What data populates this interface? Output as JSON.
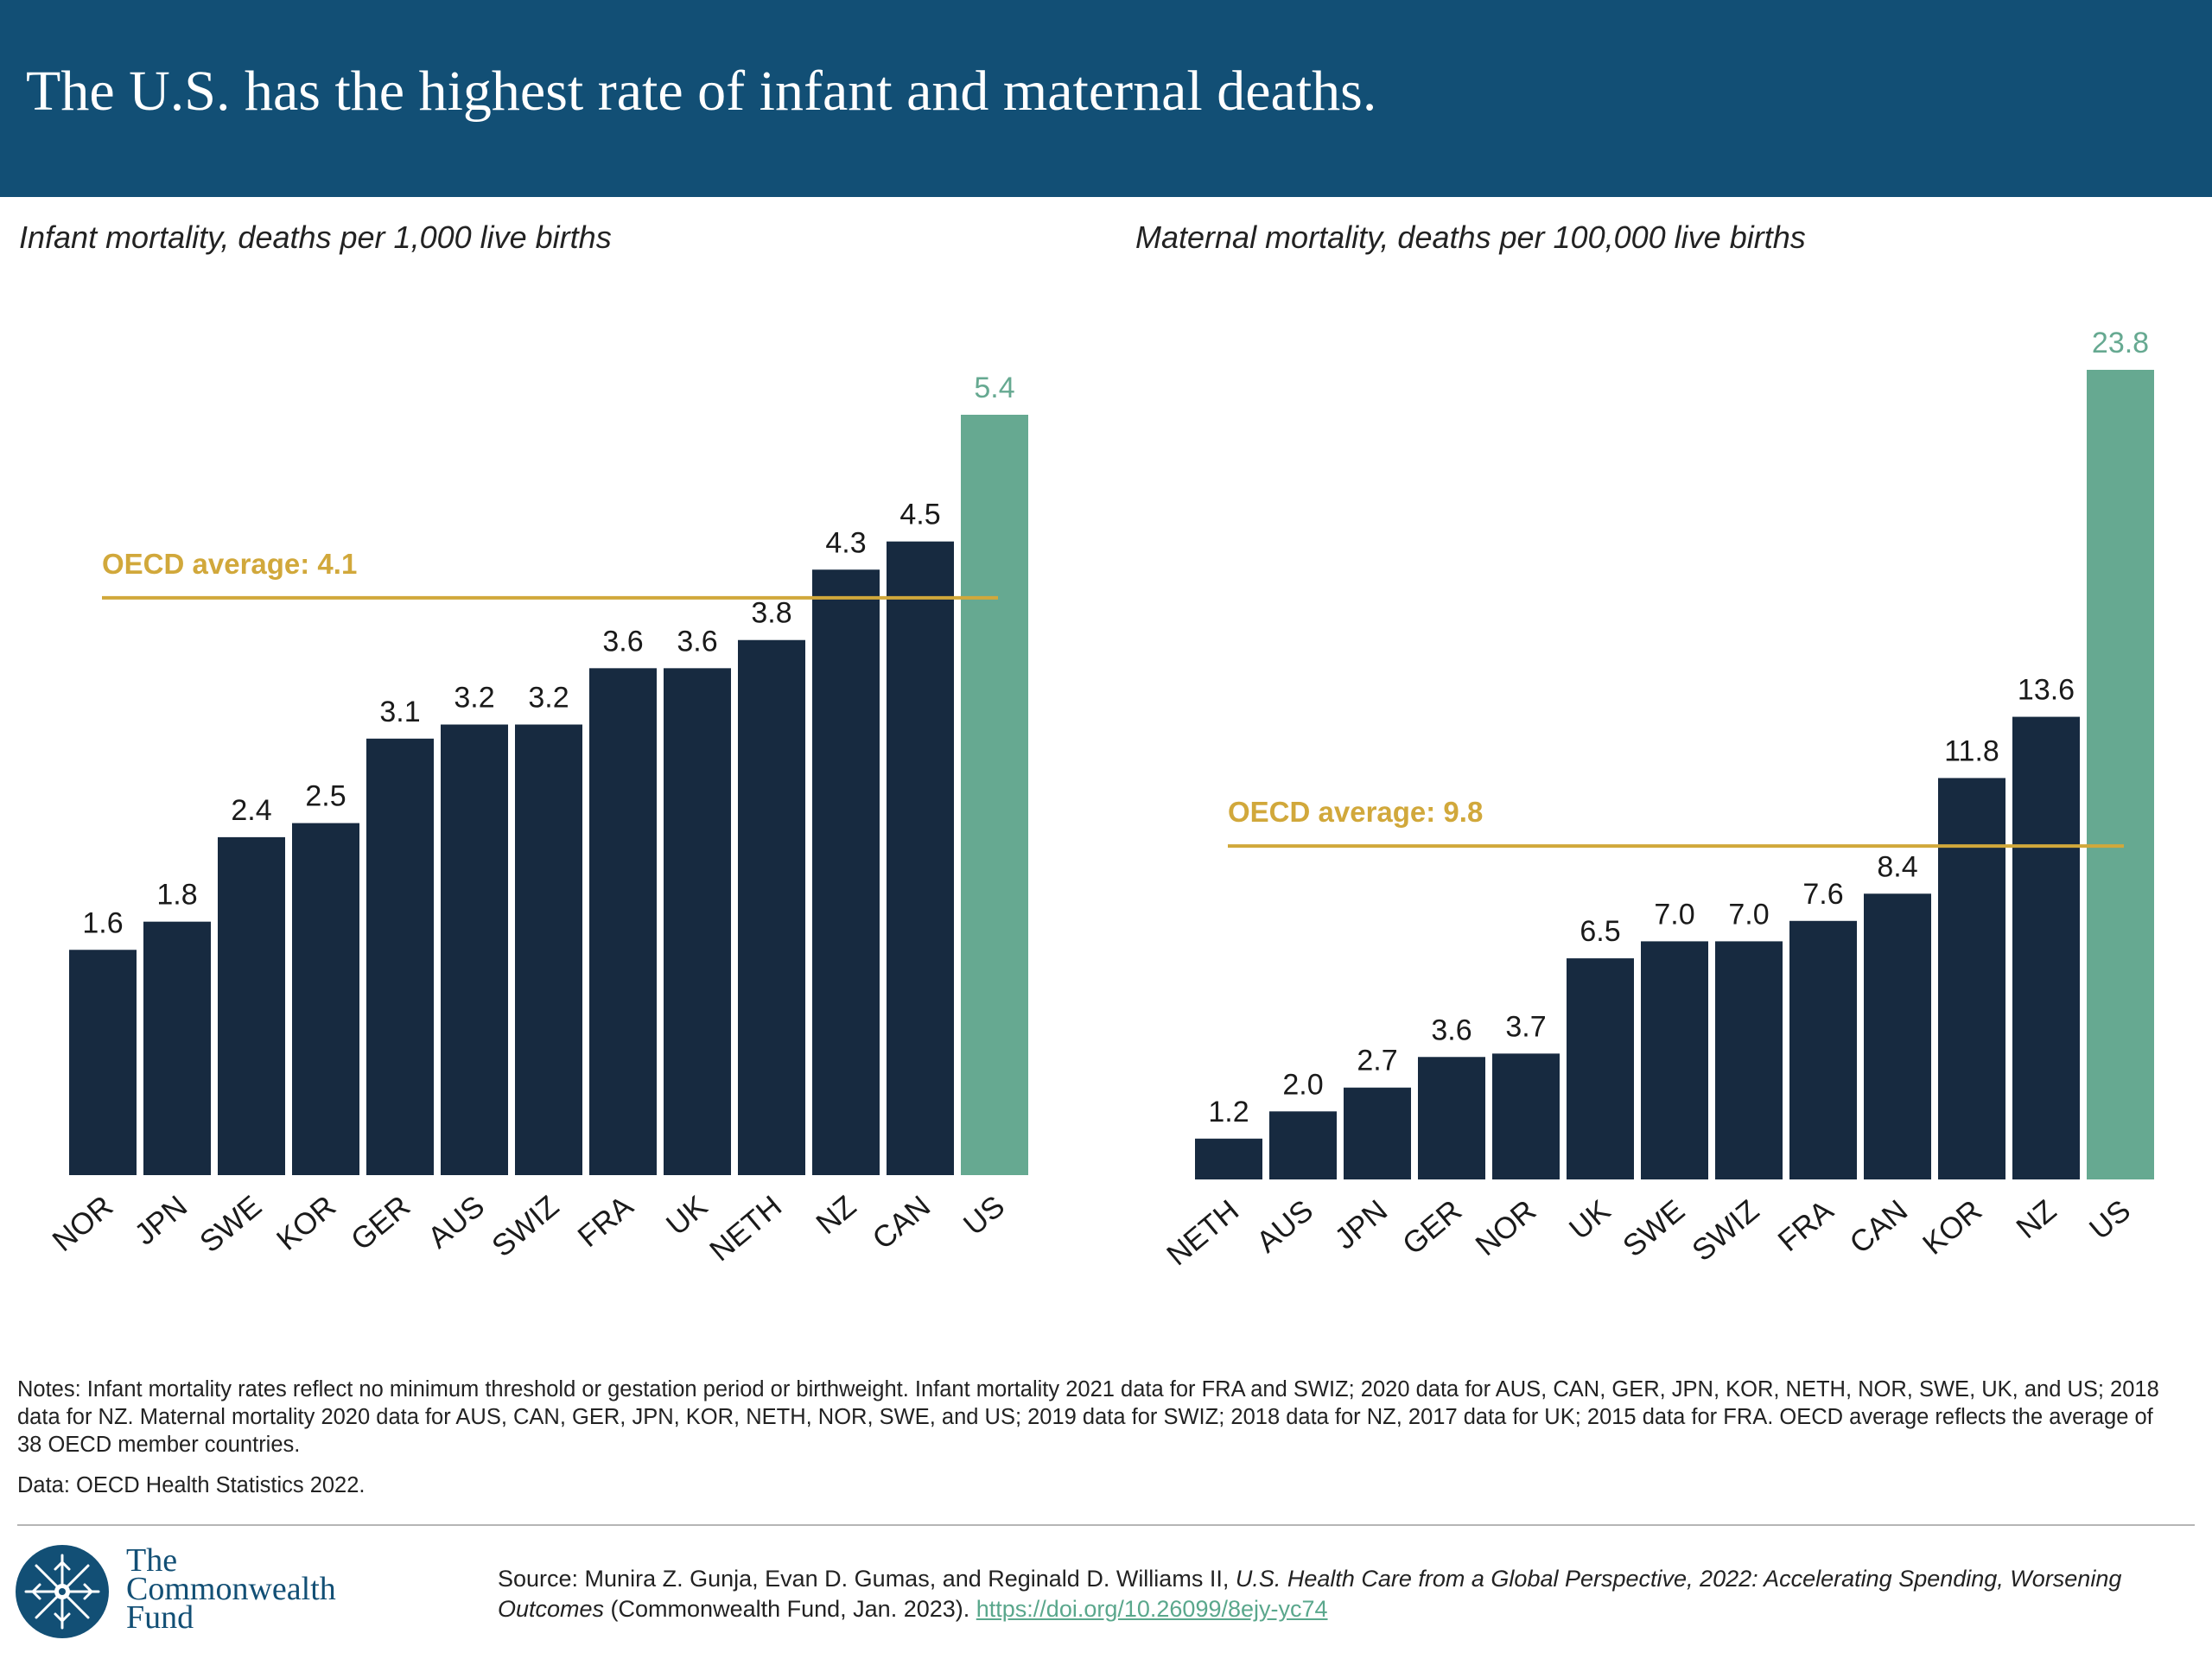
{
  "header": {
    "title": "The U.S. has the highest rate of infant and maternal deaths."
  },
  "colors": {
    "bar": "#172a40",
    "us_bar": "#66a991",
    "oecd_line": "#d1a83b",
    "header_bg": "#124f75"
  },
  "chart_data": [
    {
      "type": "bar",
      "title": "Infant mortality, deaths per 1,000 live births",
      "categories": [
        "NOR",
        "JPN",
        "SWE",
        "KOR",
        "GER",
        "AUS",
        "SWIZ",
        "FRA",
        "UK",
        "NETH",
        "NZ",
        "CAN",
        "US"
      ],
      "values": [
        1.6,
        1.8,
        2.4,
        2.5,
        3.1,
        3.2,
        3.2,
        3.6,
        3.6,
        3.8,
        4.3,
        4.5,
        5.4
      ],
      "value_labels": [
        "1.6",
        "1.8",
        "2.4",
        "2.5",
        "3.1",
        "3.2",
        "3.2",
        "3.6",
        "3.6",
        "3.8",
        "4.3",
        "4.5",
        "5.4"
      ],
      "highlight": "US",
      "reference_line": {
        "label": "OECD average: 4.1",
        "value": 4.1
      },
      "ylim": [
        0,
        5.4
      ],
      "xlabel": "",
      "ylabel": "",
      "grid": false,
      "legend": "none"
    },
    {
      "type": "bar",
      "title": "Maternal mortality, deaths per 100,000 live births",
      "categories": [
        "NETH",
        "AUS",
        "JPN",
        "GER",
        "NOR",
        "UK",
        "SWE",
        "SWIZ",
        "FRA",
        "CAN",
        "KOR",
        "NZ",
        "US"
      ],
      "values": [
        1.2,
        2.0,
        2.7,
        3.6,
        3.7,
        6.5,
        7.0,
        7.0,
        7.6,
        8.4,
        11.8,
        13.6,
        23.8
      ],
      "value_labels": [
        "1.2",
        "2.0",
        "2.7",
        "3.6",
        "3.7",
        "6.5",
        "7.0",
        "7.0",
        "7.6",
        "8.4",
        "11.8",
        "13.6",
        "23.8"
      ],
      "highlight": "US",
      "reference_line": {
        "label": "OECD average: 9.8",
        "value": 9.8
      },
      "ylim": [
        0,
        23.8
      ],
      "xlabel": "",
      "ylabel": "",
      "grid": false,
      "legend": "none"
    }
  ],
  "notes": "Notes: Infant mortality rates reflect no minimum threshold or gestation period or birthweight. Infant mortality 2021 data for FRA and SWIZ; 2020 data for AUS, CAN, GER, JPN, KOR, NETH, NOR, SWE, UK, and US; 2018 data for NZ. Maternal mortality 2020 data for AUS, CAN, GER, JPN, KOR, NETH, NOR, SWE, and US; 2019 data for SWIZ; 2018 data for NZ, 2017 data for UK; 2015 data for FRA. OECD average reflects the average of 38 OECD member countries.",
  "data_source": "Data: OECD Health Statistics 2022.",
  "logo": {
    "line1": "The",
    "line2": "Commonwealth",
    "line3": "Fund"
  },
  "source": {
    "prefix": "Source: Munira Z. Gunja, Evan D. Gumas, and Reginald D. Williams II, ",
    "title": "U.S. Health Care from a Global Perspective, 2022: Accelerating Spending, Worsening Outcomes",
    "suffix": " (Commonwealth Fund, Jan. 2023). ",
    "link": "https://doi.org/10.26099/8ejy-yc74"
  }
}
